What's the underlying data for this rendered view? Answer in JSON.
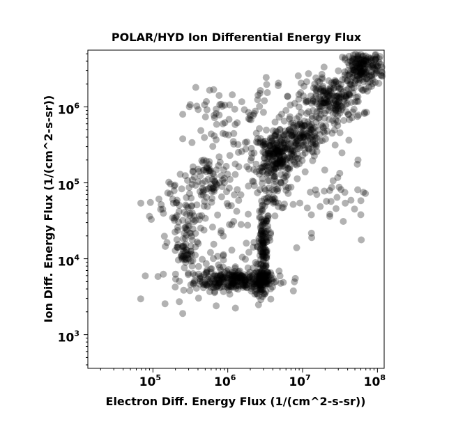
{
  "chart_data": {
    "type": "scatter",
    "title": "POLAR/HYD  Ion Differential Energy Flux",
    "xlabel": "Electron Diff. Energy Flux (1/(cm^2-s-sr))",
    "ylabel": "Ion Diff. Energy Flux (1/(cm^2-s-sr))",
    "xscale": "log",
    "yscale": "log",
    "xlim": [
      13500,
      123000000
    ],
    "ylim": [
      360,
      5600000
    ],
    "x_ticks": [
      {
        "base": "10",
        "exp": "5",
        "value": 100000
      },
      {
        "base": "10",
        "exp": "6",
        "value": 1000000
      },
      {
        "base": "10",
        "exp": "7",
        "value": 10000000
      },
      {
        "base": "10",
        "exp": "8",
        "value": 100000000
      }
    ],
    "y_ticks": [
      {
        "base": "10",
        "exp": "3",
        "value": 1000
      },
      {
        "base": "10",
        "exp": "4",
        "value": 10000
      },
      {
        "base": "10",
        "exp": "5",
        "value": 100000
      },
      {
        "base": "10",
        "exp": "6",
        "value": 1000000
      }
    ],
    "grid": false,
    "legend": "none",
    "marker_color": "#000000",
    "marker_alpha": 0.3,
    "series": [
      {
        "clusters": [
          {
            "x_center": 1300000,
            "y_center": 5200,
            "x_spread_dec": 0.28,
            "y_spread_dec": 0.07,
            "count": 260
          },
          {
            "x_center": 2900000,
            "y_center": 5000,
            "x_spread_dec": 0.05,
            "y_spread_dec": 0.09,
            "count": 90
          },
          {
            "x_center": 3000000,
            "y_center": 15000,
            "x_spread_dec": 0.04,
            "y_spread_dec": 0.25,
            "count": 110
          },
          {
            "x_center": 4200000,
            "y_center": 100000,
            "x_spread_dec": 0.12,
            "y_spread_dec": 0.18,
            "count": 70
          },
          {
            "x_center": 4500000,
            "y_center": 240000,
            "x_spread_dec": 0.16,
            "y_spread_dec": 0.14,
            "count": 200
          },
          {
            "x_center": 9000000,
            "y_center": 430000,
            "x_spread_dec": 0.16,
            "y_spread_dec": 0.12,
            "count": 120
          },
          {
            "x_center": 25000000,
            "y_center": 1200000,
            "x_spread_dec": 0.2,
            "y_spread_dec": 0.16,
            "count": 200
          },
          {
            "x_center": 65000000,
            "y_center": 3200000,
            "x_spread_dec": 0.14,
            "y_spread_dec": 0.12,
            "count": 200
          },
          {
            "x_center": 600000,
            "y_center": 100000,
            "x_spread_dec": 0.22,
            "y_spread_dec": 0.22,
            "count": 110
          },
          {
            "x_center": 270000,
            "y_center": 25000,
            "x_spread_dec": 0.1,
            "y_spread_dec": 0.2,
            "count": 60
          },
          {
            "x_center": 260000,
            "y_center": 12000,
            "x_spread_dec": 0.05,
            "y_spread_dec": 0.06,
            "count": 25
          },
          {
            "x_center": 800000,
            "y_center": 1000000,
            "x_spread_dec": 0.25,
            "y_spread_dec": 0.15,
            "count": 30
          },
          {
            "x_center": 400000,
            "y_center": 6000,
            "x_spread_dec": 0.3,
            "y_spread_dec": 0.2,
            "count": 50
          },
          {
            "x_center": 3000000,
            "y_center": 600000,
            "x_spread_dec": 0.35,
            "y_spread_dec": 0.3,
            "count": 60
          },
          {
            "x_center": 15000000,
            "y_center": 80000,
            "x_spread_dec": 0.45,
            "y_spread_dec": 0.35,
            "count": 60
          },
          {
            "x_center": 1100000,
            "y_center": 20000,
            "x_spread_dec": 0.3,
            "y_spread_dec": 0.25,
            "count": 25
          },
          {
            "x_center": 170000,
            "y_center": 45000,
            "x_spread_dec": 0.15,
            "y_spread_dec": 0.15,
            "count": 20
          }
        ],
        "points": [
          {
            "x": 250000,
            "y": 380000
          },
          {
            "x": 250000,
            "y": 1900
          },
          {
            "x": 700000,
            "y": 2400
          },
          {
            "x": 95000,
            "y": 33000
          },
          {
            "x": 60000000,
            "y": 38000
          },
          {
            "x": 35000000,
            "y": 31000
          },
          {
            "x": 55000000,
            "y": 200000
          },
          {
            "x": 8000000,
            "y": 5500
          },
          {
            "x": 6000000,
            "y": 900000
          },
          {
            "x": 3000000,
            "y": 850000
          },
          {
            "x": 1900000,
            "y": 700000
          },
          {
            "x": 600000,
            "y": 440000
          },
          {
            "x": 250000,
            "y": 800000
          },
          {
            "x": 1200000,
            "y": 31000
          },
          {
            "x": 1600000,
            "y": 4200
          }
        ]
      }
    ]
  }
}
